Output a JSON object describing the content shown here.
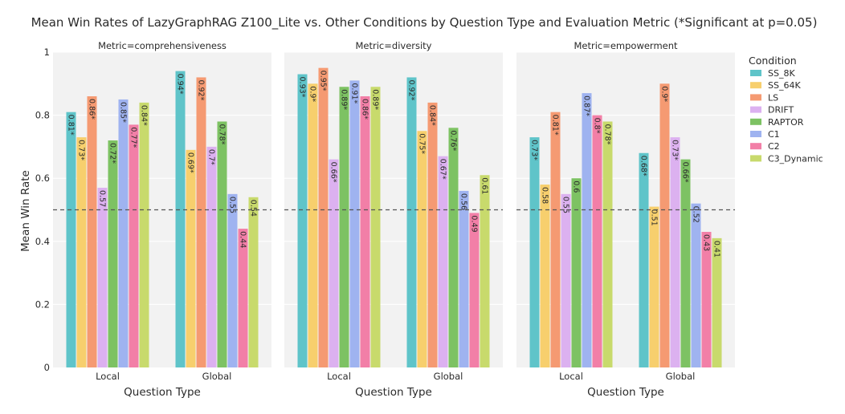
{
  "chart_data": {
    "type": "bar",
    "title": "Mean Win Rates of LazyGraphRAG Z100_Lite vs. Other Conditions by Question Type and Evaluation Metric (*Significant at p=0.05)",
    "ylabel": "Mean Win Rate",
    "xlabel": "Question Type",
    "ylim": [
      0,
      1
    ],
    "yticks": [
      "0",
      "0.2",
      "0.4",
      "0.6",
      "0.8",
      "1"
    ],
    "reference_line": 0.5,
    "categories": [
      "Local",
      "Global"
    ],
    "legend": {
      "title": "Condition",
      "placement": "right"
    },
    "series": [
      {
        "name": "SS_8K",
        "color": "#5fc4c9"
      },
      {
        "name": "SS_64K",
        "color": "#f7cf6d"
      },
      {
        "name": "LS",
        "color": "#f59a72"
      },
      {
        "name": "DRIFT",
        "color": "#dcb1f0"
      },
      {
        "name": "RAPTOR",
        "color": "#7dc263"
      },
      {
        "name": "C1",
        "color": "#9fb3f0"
      },
      {
        "name": "C2",
        "color": "#f27fa7"
      },
      {
        "name": "C3_Dynamic",
        "color": "#c8da6c"
      }
    ],
    "facets": [
      {
        "title": "Metric=comprehensiveness",
        "groups": [
          {
            "category": "Local",
            "values": [
              0.81,
              0.73,
              0.86,
              0.57,
              0.72,
              0.85,
              0.77,
              0.84
            ],
            "labels": [
              "0.81*",
              "0.73*",
              "0.86*",
              "0.57",
              "0.72*",
              "0.85*",
              "0.77*",
              "0.84*"
            ]
          },
          {
            "category": "Global",
            "values": [
              0.94,
              0.69,
              0.92,
              0.7,
              0.78,
              0.55,
              0.44,
              0.54
            ],
            "labels": [
              "0.94*",
              "0.69*",
              "0.92*",
              "0.7*",
              "0.78*",
              "0.55",
              "0.44",
              "0.54"
            ]
          }
        ]
      },
      {
        "title": "Metric=diversity",
        "groups": [
          {
            "category": "Local",
            "values": [
              0.93,
              0.9,
              0.95,
              0.66,
              0.89,
              0.91,
              0.86,
              0.89
            ],
            "labels": [
              "0.93*",
              "0.9*",
              "0.95*",
              "0.66*",
              "0.89*",
              "0.91*",
              "0.86*",
              "0.89*"
            ]
          },
          {
            "category": "Global",
            "values": [
              0.92,
              0.75,
              0.84,
              0.67,
              0.76,
              0.56,
              0.49,
              0.61
            ],
            "labels": [
              "0.92*",
              "0.75*",
              "0.84*",
              "0.67*",
              "0.76*",
              "0.56",
              "0.49",
              "0.61"
            ]
          }
        ]
      },
      {
        "title": "Metric=empowerment",
        "groups": [
          {
            "category": "Local",
            "values": [
              0.73,
              0.58,
              0.81,
              0.55,
              0.6,
              0.87,
              0.8,
              0.78
            ],
            "labels": [
              "0.73*",
              "0.58",
              "0.81*",
              "0.55",
              "0.6",
              "0.87*",
              "0.8*",
              "0.78*"
            ]
          },
          {
            "category": "Global",
            "values": [
              0.68,
              0.51,
              0.9,
              0.73,
              0.66,
              0.52,
              0.43,
              0.41
            ],
            "labels": [
              "0.68*",
              "0.51",
              "0.9*",
              "0.73*",
              "0.66*",
              "0.52",
              "0.43",
              "0.41"
            ]
          }
        ]
      }
    ]
  }
}
